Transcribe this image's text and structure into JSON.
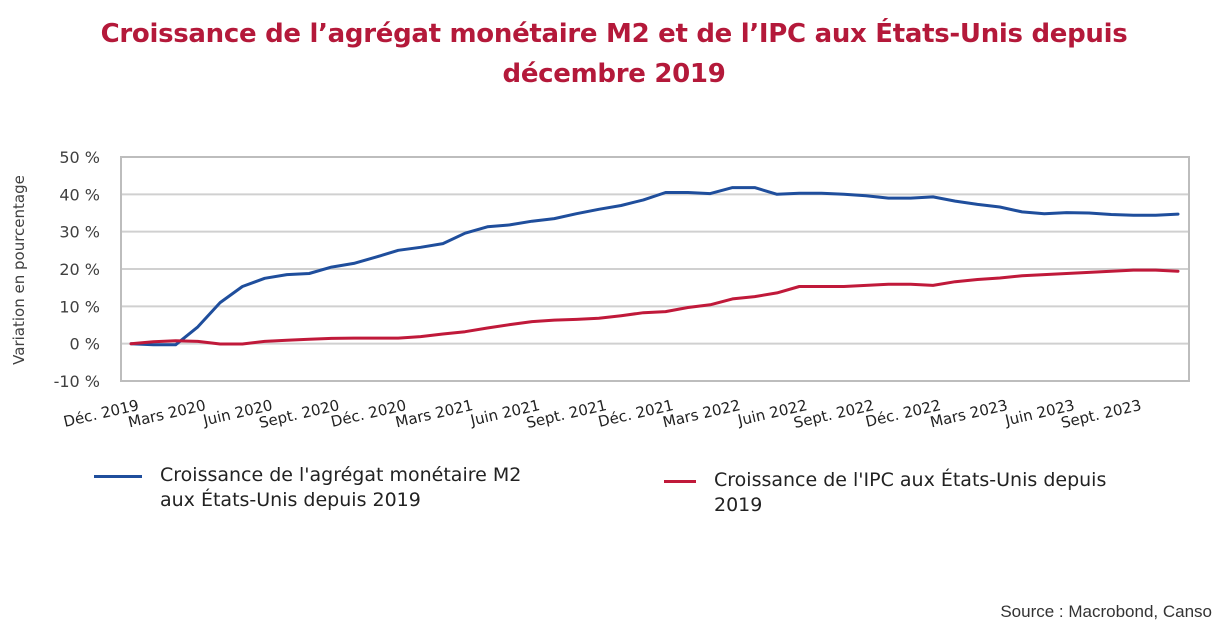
{
  "title": {
    "line1": "Croissance de l’agrégat monétaire M2 et de l’IPC aux États-Unis depuis",
    "line2": "décembre 2019"
  },
  "source": "Source : Macrobond, Canso",
  "colors": {
    "title": "#b4193a",
    "m2": "#1f4e9c",
    "cpi": "#c0193a",
    "grid": "#d0d0d0",
    "frame": "#bdbdbd"
  },
  "chart_data": {
    "type": "line",
    "title": "Croissance de l’agrégat monétaire M2 et de l’IPC aux États-Unis depuis décembre 2019",
    "xlabel": "",
    "ylabel": "Variation en pourcentage",
    "ylim": [
      -10,
      50
    ],
    "yticks": [
      -10,
      0,
      10,
      20,
      30,
      40,
      50
    ],
    "ytick_labels": [
      "-10 %",
      "0 %",
      "10 %",
      "20 %",
      "30 %",
      "40 %",
      "50 %"
    ],
    "grid": true,
    "legend_position": "bottom",
    "x_tick_labels": [
      "Déc. 2019",
      "Mars 2020",
      "Juin 2020",
      "Sept. 2020",
      "Déc. 2020",
      "Mars 2021",
      "Juin 2021",
      "Sept. 2021",
      "Déc. 2021",
      "Mars 2022",
      "Juin 2022",
      "Sept. 2022",
      "Déc. 2022",
      "Mars 2023",
      "Juin 2023",
      "Sept. 2023"
    ],
    "x_months": 46,
    "series": [
      {
        "name": "Croissance de l'agrégat monétaire M2 aux États-Unis depuis 2019",
        "legend_line1": "Croissance de l'agrégat monétaire M2",
        "legend_line2": "aux États-Unis depuis 2019",
        "color": "#1f4e9c",
        "values": [
          0,
          -0.3,
          -0.3,
          4.5,
          11,
          15.3,
          17.5,
          18.5,
          18.8,
          20.5,
          21.5,
          23.2,
          25,
          25.8,
          26.8,
          29.6,
          31.3,
          31.8,
          32.8,
          33.5,
          34.8,
          36,
          37,
          38.5,
          40.5,
          40.5,
          40.2,
          41.8,
          41.8,
          40,
          40.3,
          40.3,
          40,
          39.6,
          39,
          39,
          39.3,
          38.2,
          37.3,
          36.6,
          35.3,
          34.8,
          35.1,
          35,
          34.6,
          34.4,
          34.4,
          34.7
        ]
      },
      {
        "name": "Croissance de l'IPC aux États-Unis depuis 2019",
        "legend_line1": "Croissance de l'IPC aux États-Unis depuis",
        "legend_line2": "2019",
        "color": "#c0193a",
        "values": [
          0,
          0.5,
          0.8,
          0.6,
          -0.1,
          -0.1,
          0.6,
          0.9,
          1.2,
          1.4,
          1.5,
          1.5,
          1.5,
          1.9,
          2.6,
          3.2,
          4.2,
          5.1,
          5.9,
          6.3,
          6.5,
          6.8,
          7.5,
          8.3,
          8.6,
          9.7,
          10.4,
          12,
          12.6,
          13.6,
          15.3,
          15.3,
          15.3,
          15.6,
          15.9,
          15.9,
          15.6,
          16.6,
          17.2,
          17.6,
          18.2,
          18.5,
          18.8,
          19.1,
          19.4,
          19.7,
          19.7,
          19.4
        ]
      }
    ]
  }
}
